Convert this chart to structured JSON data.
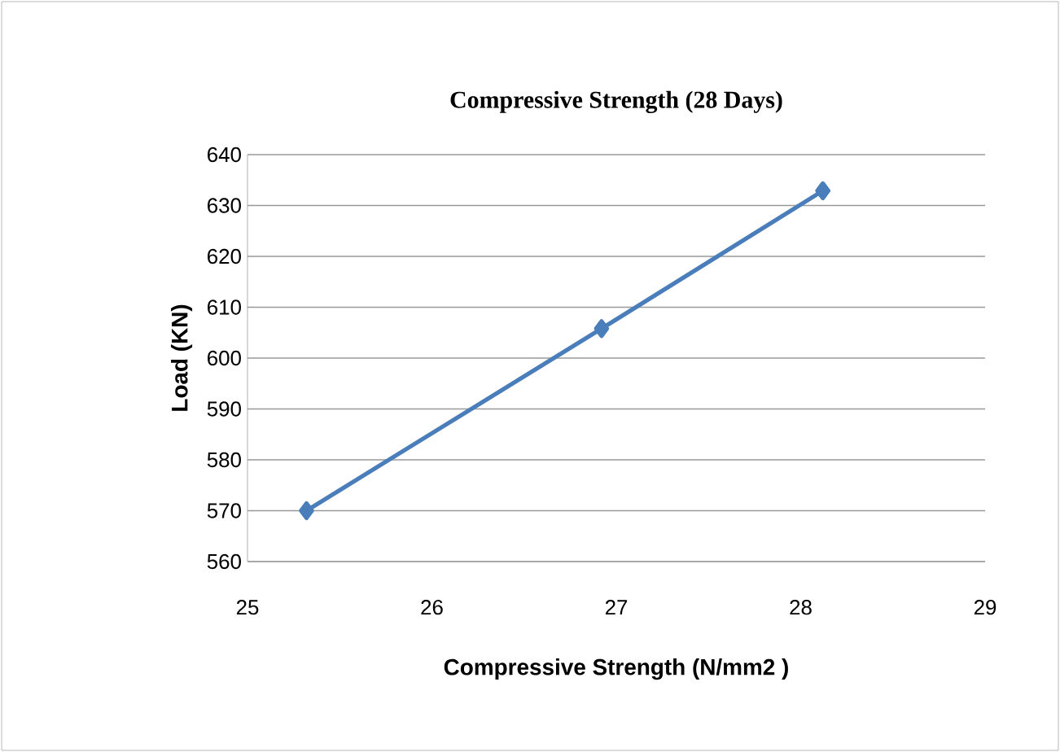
{
  "chart_data": {
    "type": "line",
    "title": "Compressive Strength (28 Days)",
    "xlabel": "Compressive Strength (N/mm2 )",
    "ylabel": "Load (KN)",
    "x": [
      25.32,
      26.92,
      28.12
    ],
    "series": [
      {
        "color": "#4a7ebb",
        "values": [
          570,
          605.8,
          632.9
        ]
      }
    ],
    "xlim": [
      25,
      29
    ],
    "xticks": [
      25,
      26,
      27,
      28,
      29
    ],
    "ylim": [
      560,
      640
    ],
    "yticks": [
      560,
      570,
      580,
      590,
      600,
      610,
      620,
      630,
      640
    ],
    "grid": "y",
    "marker": "diamond",
    "line_style": "solid"
  }
}
